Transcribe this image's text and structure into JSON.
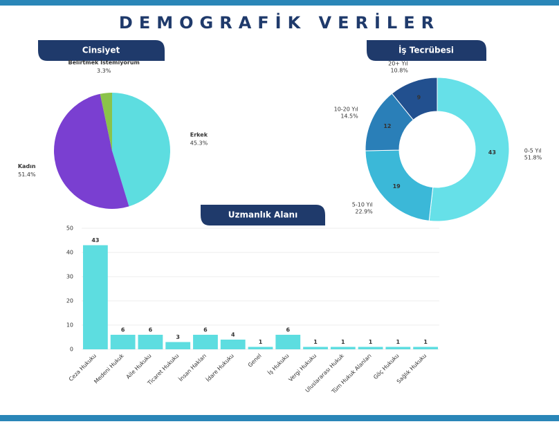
{
  "title": "DEMOGRAFİK VERİLER",
  "chart_data": [
    {
      "type": "pie",
      "title": "Cinsiyet",
      "categories": [
        "Erkek",
        "Kadın",
        "Belirtmek İstemiyorum"
      ],
      "values": [
        45.3,
        51.4,
        3.3
      ],
      "value_labels": [
        "45.3%",
        "51.4%",
        "3.3%"
      ],
      "colors": [
        "#5ddde0",
        "#7a3fd1",
        "#8bc34a"
      ]
    },
    {
      "type": "donut",
      "title": "İş Tecrübesi",
      "categories": [
        "0-5 Yıl",
        "5-10 Yıl",
        "10-20 Yıl",
        "20+ Yıl"
      ],
      "values": [
        43,
        19,
        12,
        9
      ],
      "percent_labels": [
        "51.8%",
        "22.9%",
        "14.5%",
        "10.8%"
      ],
      "colors": [
        "#66e0e8",
        "#3bb8d8",
        "#2a7fb8",
        "#22508f"
      ]
    },
    {
      "type": "bar",
      "title": "Uzmanlık Alanı",
      "categories": [
        "Ceza Hukuku",
        "Medeni Hukuk",
        "Aile Hukuku",
        "Ticaret Hukuku",
        "İnsan Hakları",
        "İdare Hukuku",
        "Genel",
        "İş Hukuku",
        "Vergi Hukuku",
        "Uluslararası Hukuk",
        "Tüm Hukuk Alanları",
        "Göç Hukuku",
        "Sağlık Hukuku"
      ],
      "values": [
        43,
        6,
        6,
        3,
        6,
        4,
        1,
        6,
        1,
        1,
        1,
        1,
        1
      ],
      "color": "#5ddde0",
      "ylim": [
        0,
        50
      ],
      "yticks": [
        0,
        10,
        20,
        30,
        40,
        50
      ],
      "grid": true
    }
  ]
}
